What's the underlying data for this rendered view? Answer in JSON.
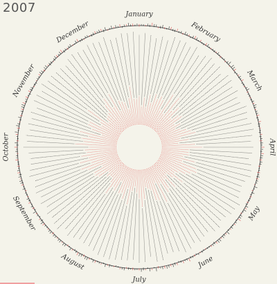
{
  "year": "2007",
  "chart_data": {
    "type": "radial",
    "title": "2007",
    "months": [
      "January",
      "February",
      "March",
      "April",
      "May",
      "June",
      "July",
      "August",
      "September",
      "October",
      "November",
      "December"
    ],
    "series": [
      {
        "color": "#222222"
      },
      {
        "color": "#e04848"
      }
    ],
    "grid": false,
    "legend": "none"
  },
  "colors": {
    "background": "#f4f3ea",
    "dark_line": "#222222",
    "red_line": "#e04848",
    "ring": "#333333"
  }
}
